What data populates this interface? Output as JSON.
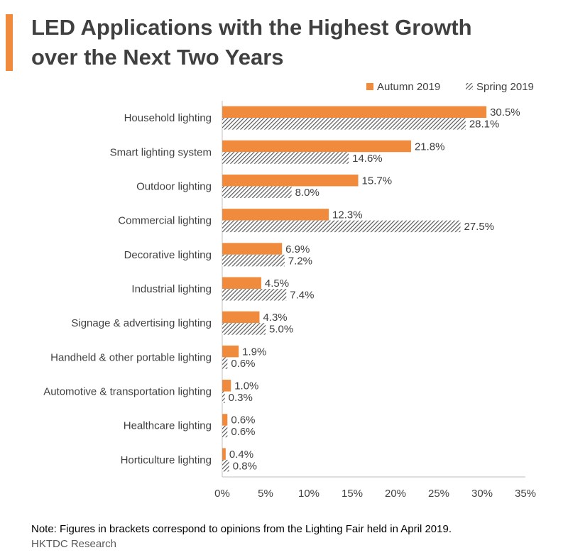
{
  "title_line1": "LED Applications with the Highest Growth",
  "title_line2": "over the Next Two Years",
  "note": "Note: Figures in brackets correspond to opinions from the Lighting Fair held in April 2019.",
  "source": "HKTDC Research",
  "colors": {
    "autumn": "#f08a3c",
    "spring_stripe": "#595959",
    "axis": "#bfbfbf",
    "accent": "#f08a3c"
  },
  "chart_data": {
    "type": "bar",
    "orientation": "horizontal",
    "categories": [
      "Household lighting",
      "Smart lighting system",
      "Outdoor lighting",
      "Commercial lighting",
      "Decorative lighting",
      "Industrial lighting",
      "Signage & advertising lighting",
      "Handheld & other portable lighting",
      "Automotive & transportation lighting",
      "Healthcare lighting",
      "Horticulture lighting"
    ],
    "series": [
      {
        "name": "Autumn 2019",
        "values": [
          30.5,
          21.8,
          15.7,
          12.3,
          6.9,
          4.5,
          4.3,
          1.9,
          1.0,
          0.6,
          0.4
        ],
        "labels": [
          "30.5%",
          "21.8%",
          "15.7%",
          "12.3%",
          "6.9%",
          "4.5%",
          "4.3%",
          "1.9%",
          "1.0%",
          "0.6%",
          "0.4%"
        ]
      },
      {
        "name": "Spring 2019",
        "values": [
          28.1,
          14.6,
          8.0,
          27.5,
          7.2,
          7.4,
          5.0,
          0.6,
          0.3,
          0.6,
          0.8
        ],
        "labels": [
          "28.1%",
          "14.6%",
          "8.0%",
          "27.5%",
          "7.2%",
          "7.4%",
          "5.0%",
          "0.6%",
          "0.3%",
          "0.6%",
          "0.8%"
        ]
      }
    ],
    "xlim": [
      0,
      35
    ],
    "xticks": [
      0,
      5,
      10,
      15,
      20,
      25,
      30,
      35
    ],
    "xtick_labels": [
      "0%",
      "5%",
      "10%",
      "15%",
      "20%",
      "25%",
      "30%",
      "35%"
    ],
    "legend_position": "top-right"
  }
}
